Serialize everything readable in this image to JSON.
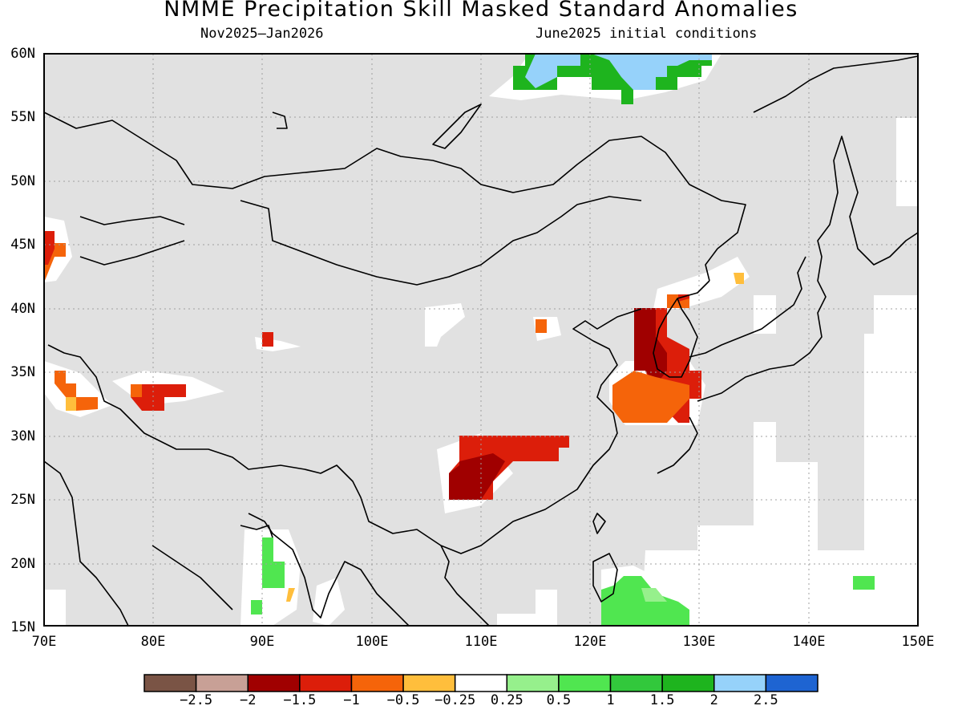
{
  "title": "NMME Precipitation Skill Masked Standard Anomalies",
  "subtitle_left": "Nov2025—Jan2026",
  "subtitle_right": "June2025 initial conditions",
  "lat_labels": [
    "60N",
    "55N",
    "50N",
    "45N",
    "40N",
    "35N",
    "30N",
    "25N",
    "20N",
    "15N"
  ],
  "lon_labels": [
    "70E",
    "80E",
    "90E",
    "100E",
    "110E",
    "120E",
    "130E",
    "140E",
    "150E"
  ],
  "colorbar": {
    "colors": [
      "#7a5445",
      "#c8a096",
      "#a00000",
      "#dc1e0a",
      "#f5640a",
      "#ffbe3c",
      "#ffffff",
      "#96f08c",
      "#50e650",
      "#32c83c",
      "#1eb41e",
      "#96d2fa",
      "#1e64d2"
    ],
    "labels": [
      "−2.5",
      "−2",
      "−1.5",
      "−1",
      "−0.5",
      "−0.25",
      "0.25",
      "0.5",
      "1",
      "1.5",
      "2",
      "2.5"
    ]
  },
  "map_colors": {
    "masked": "#e1e1e1",
    "neutral": "#ffffff",
    "coast": "#000000",
    "grid": "#a0a0a0"
  }
}
